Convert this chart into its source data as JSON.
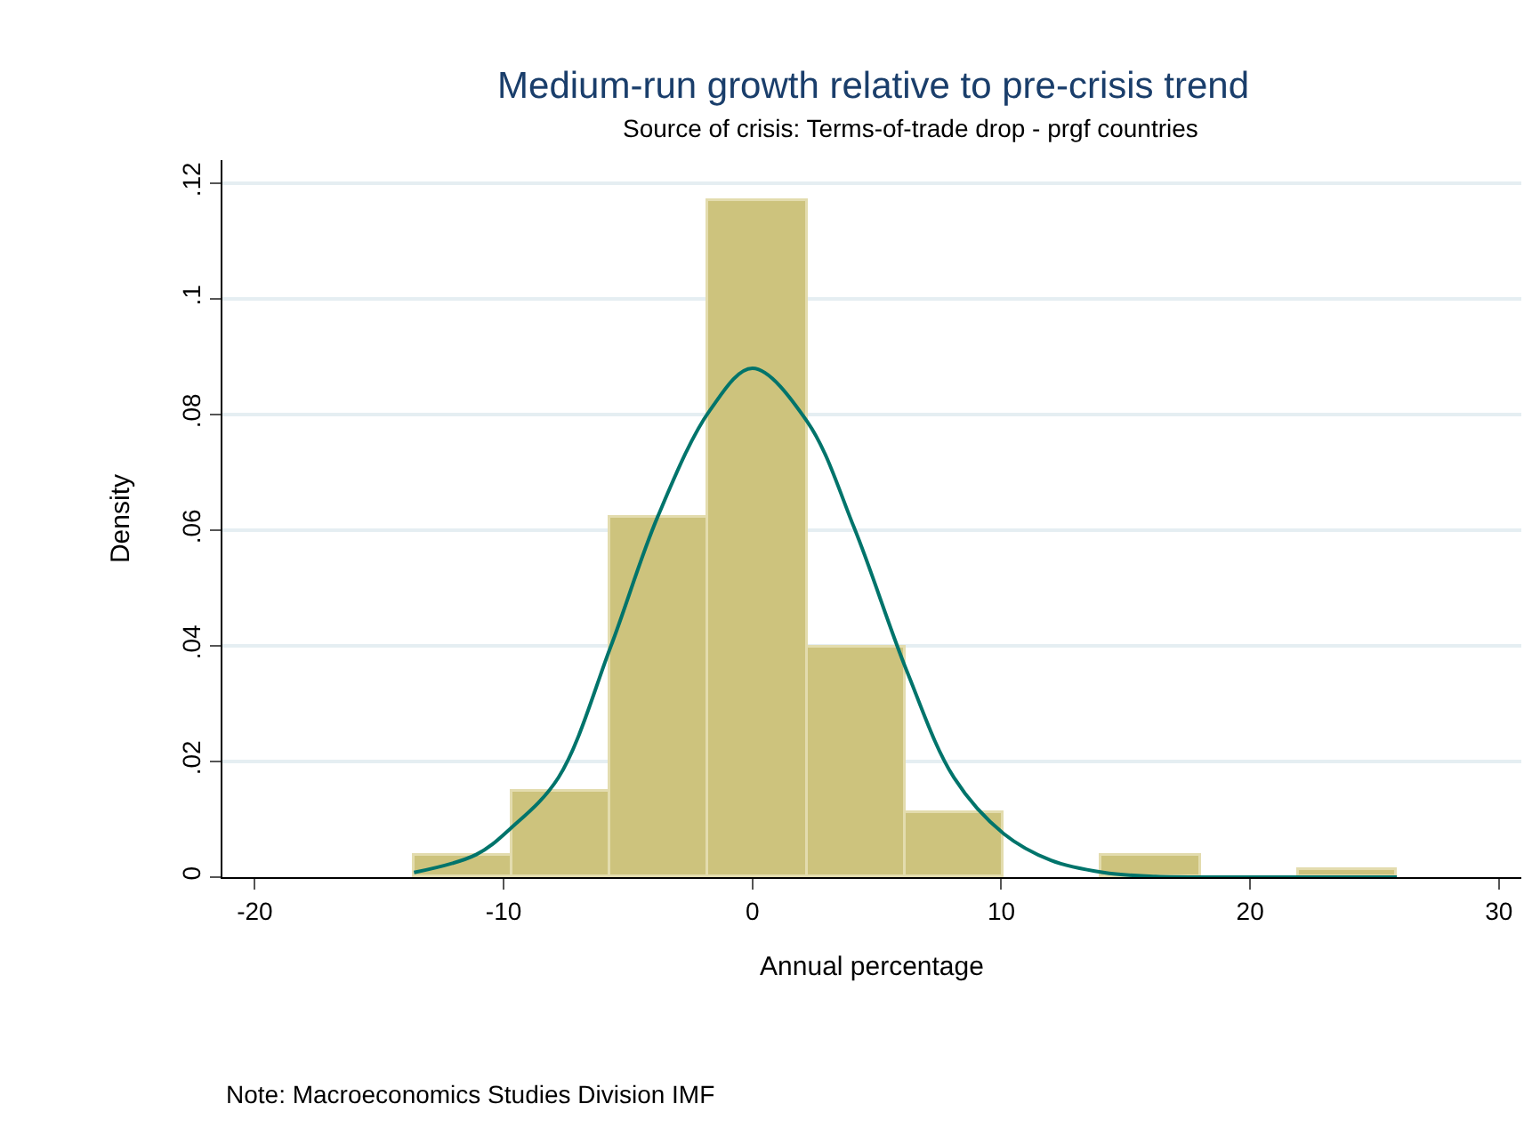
{
  "chart_data": {
    "type": "histogram",
    "title": "Medium-run growth relative to pre-crisis trend",
    "subtitle": "Source of crisis: Terms-of-trade drop - prgf countries",
    "xlabel": "Annual percentage",
    "ylabel": "Density",
    "annotations": [
      "Note: Macroeconomics Studies Division IMF"
    ],
    "bins": [
      -13.6,
      -9.65,
      -5.7,
      -1.75,
      2.2,
      6.15,
      10.1,
      14.05,
      18.0,
      21.95,
      25.9
    ],
    "values": [
      0.0037,
      0.0149,
      0.0622,
      0.1169,
      0.0398,
      0.0111,
      0,
      0.0037,
      0,
      0.0011
    ],
    "color": "#cdc37d",
    "series": [
      {
        "type": "line",
        "color": "#00746b",
        "x": [
          -13.6,
          -11.1,
          -9.7,
          -7.8,
          -5.7,
          -3.8,
          -1.7,
          0,
          2.2,
          4.1,
          6.2,
          8.1,
          10.1,
          12.0,
          14.1,
          16.2,
          20,
          25.9
        ],
        "values": [
          0.0008,
          0.0039,
          0.0085,
          0.0172,
          0.0398,
          0.0624,
          0.0808,
          0.088,
          0.0788,
          0.0603,
          0.0357,
          0.0172,
          0.0075,
          0.0029,
          0.0008,
          0.0001,
          0,
          0
        ]
      }
    ],
    "xlim": [
      -21.3,
      30.9
    ],
    "xticks": [
      -20,
      -10,
      0,
      10,
      20,
      30
    ],
    "ylim": [
      0,
      0.124
    ],
    "yticks": [
      0,
      {
        "value": 0.02,
        "label": ".02"
      },
      {
        "value": 0.04,
        "label": ".04"
      },
      {
        "value": 0.06,
        "label": ".06"
      },
      {
        "value": 0.08,
        "label": ".08"
      },
      {
        "value": 0.1,
        "label": ".1"
      },
      {
        "value": 0.12,
        "label": ".12"
      }
    ],
    "grid": "y",
    "marker": "none",
    "line_style": "solid"
  }
}
